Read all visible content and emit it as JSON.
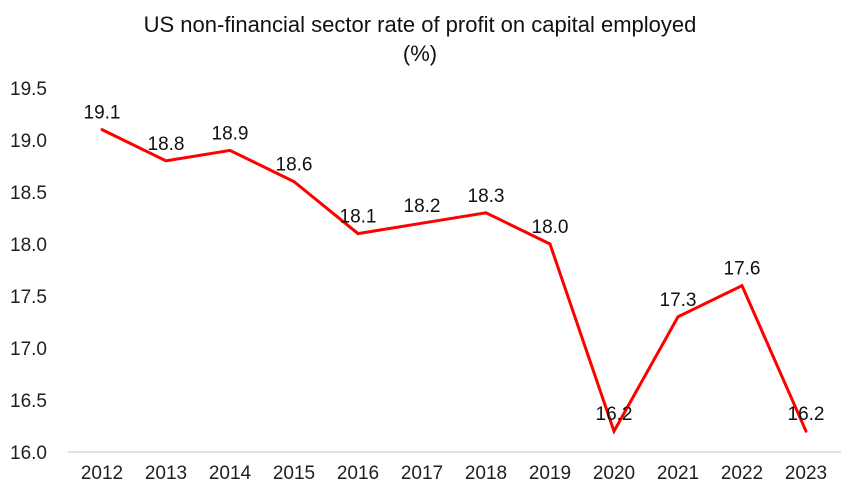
{
  "page": {
    "background_color": "#ffffff"
  },
  "chart_data": {
    "type": "line",
    "title": "US non-financial sector rate of profit on capital employed",
    "title_line2": "(%)",
    "categories": [
      "2012",
      "2013",
      "2014",
      "2015",
      "2016",
      "2017",
      "2018",
      "2019",
      "2020",
      "2021",
      "2022",
      "2023"
    ],
    "values": [
      19.1,
      18.8,
      18.9,
      18.6,
      18.1,
      18.2,
      18.3,
      18.0,
      16.2,
      17.3,
      17.6,
      16.2
    ],
    "data_labels": [
      "19.1",
      "18.8",
      "18.9",
      "18.6",
      "18.1",
      "18.2",
      "18.3",
      "18.0",
      "16.2",
      "17.3",
      "17.6",
      "16.2"
    ],
    "yticks": [
      "19.5",
      "19.0",
      "18.5",
      "18.0",
      "17.5",
      "17.0",
      "16.5",
      "16.0"
    ],
    "ylim": [
      16.0,
      19.5
    ],
    "ytick_step": 0.5,
    "xlabel": "",
    "ylabel": "",
    "grid": false,
    "legend": "none",
    "show_data_labels": true,
    "line_color": "#FF0000",
    "axis_line_color": "#D9D9D9",
    "text_color": "#111111"
  }
}
